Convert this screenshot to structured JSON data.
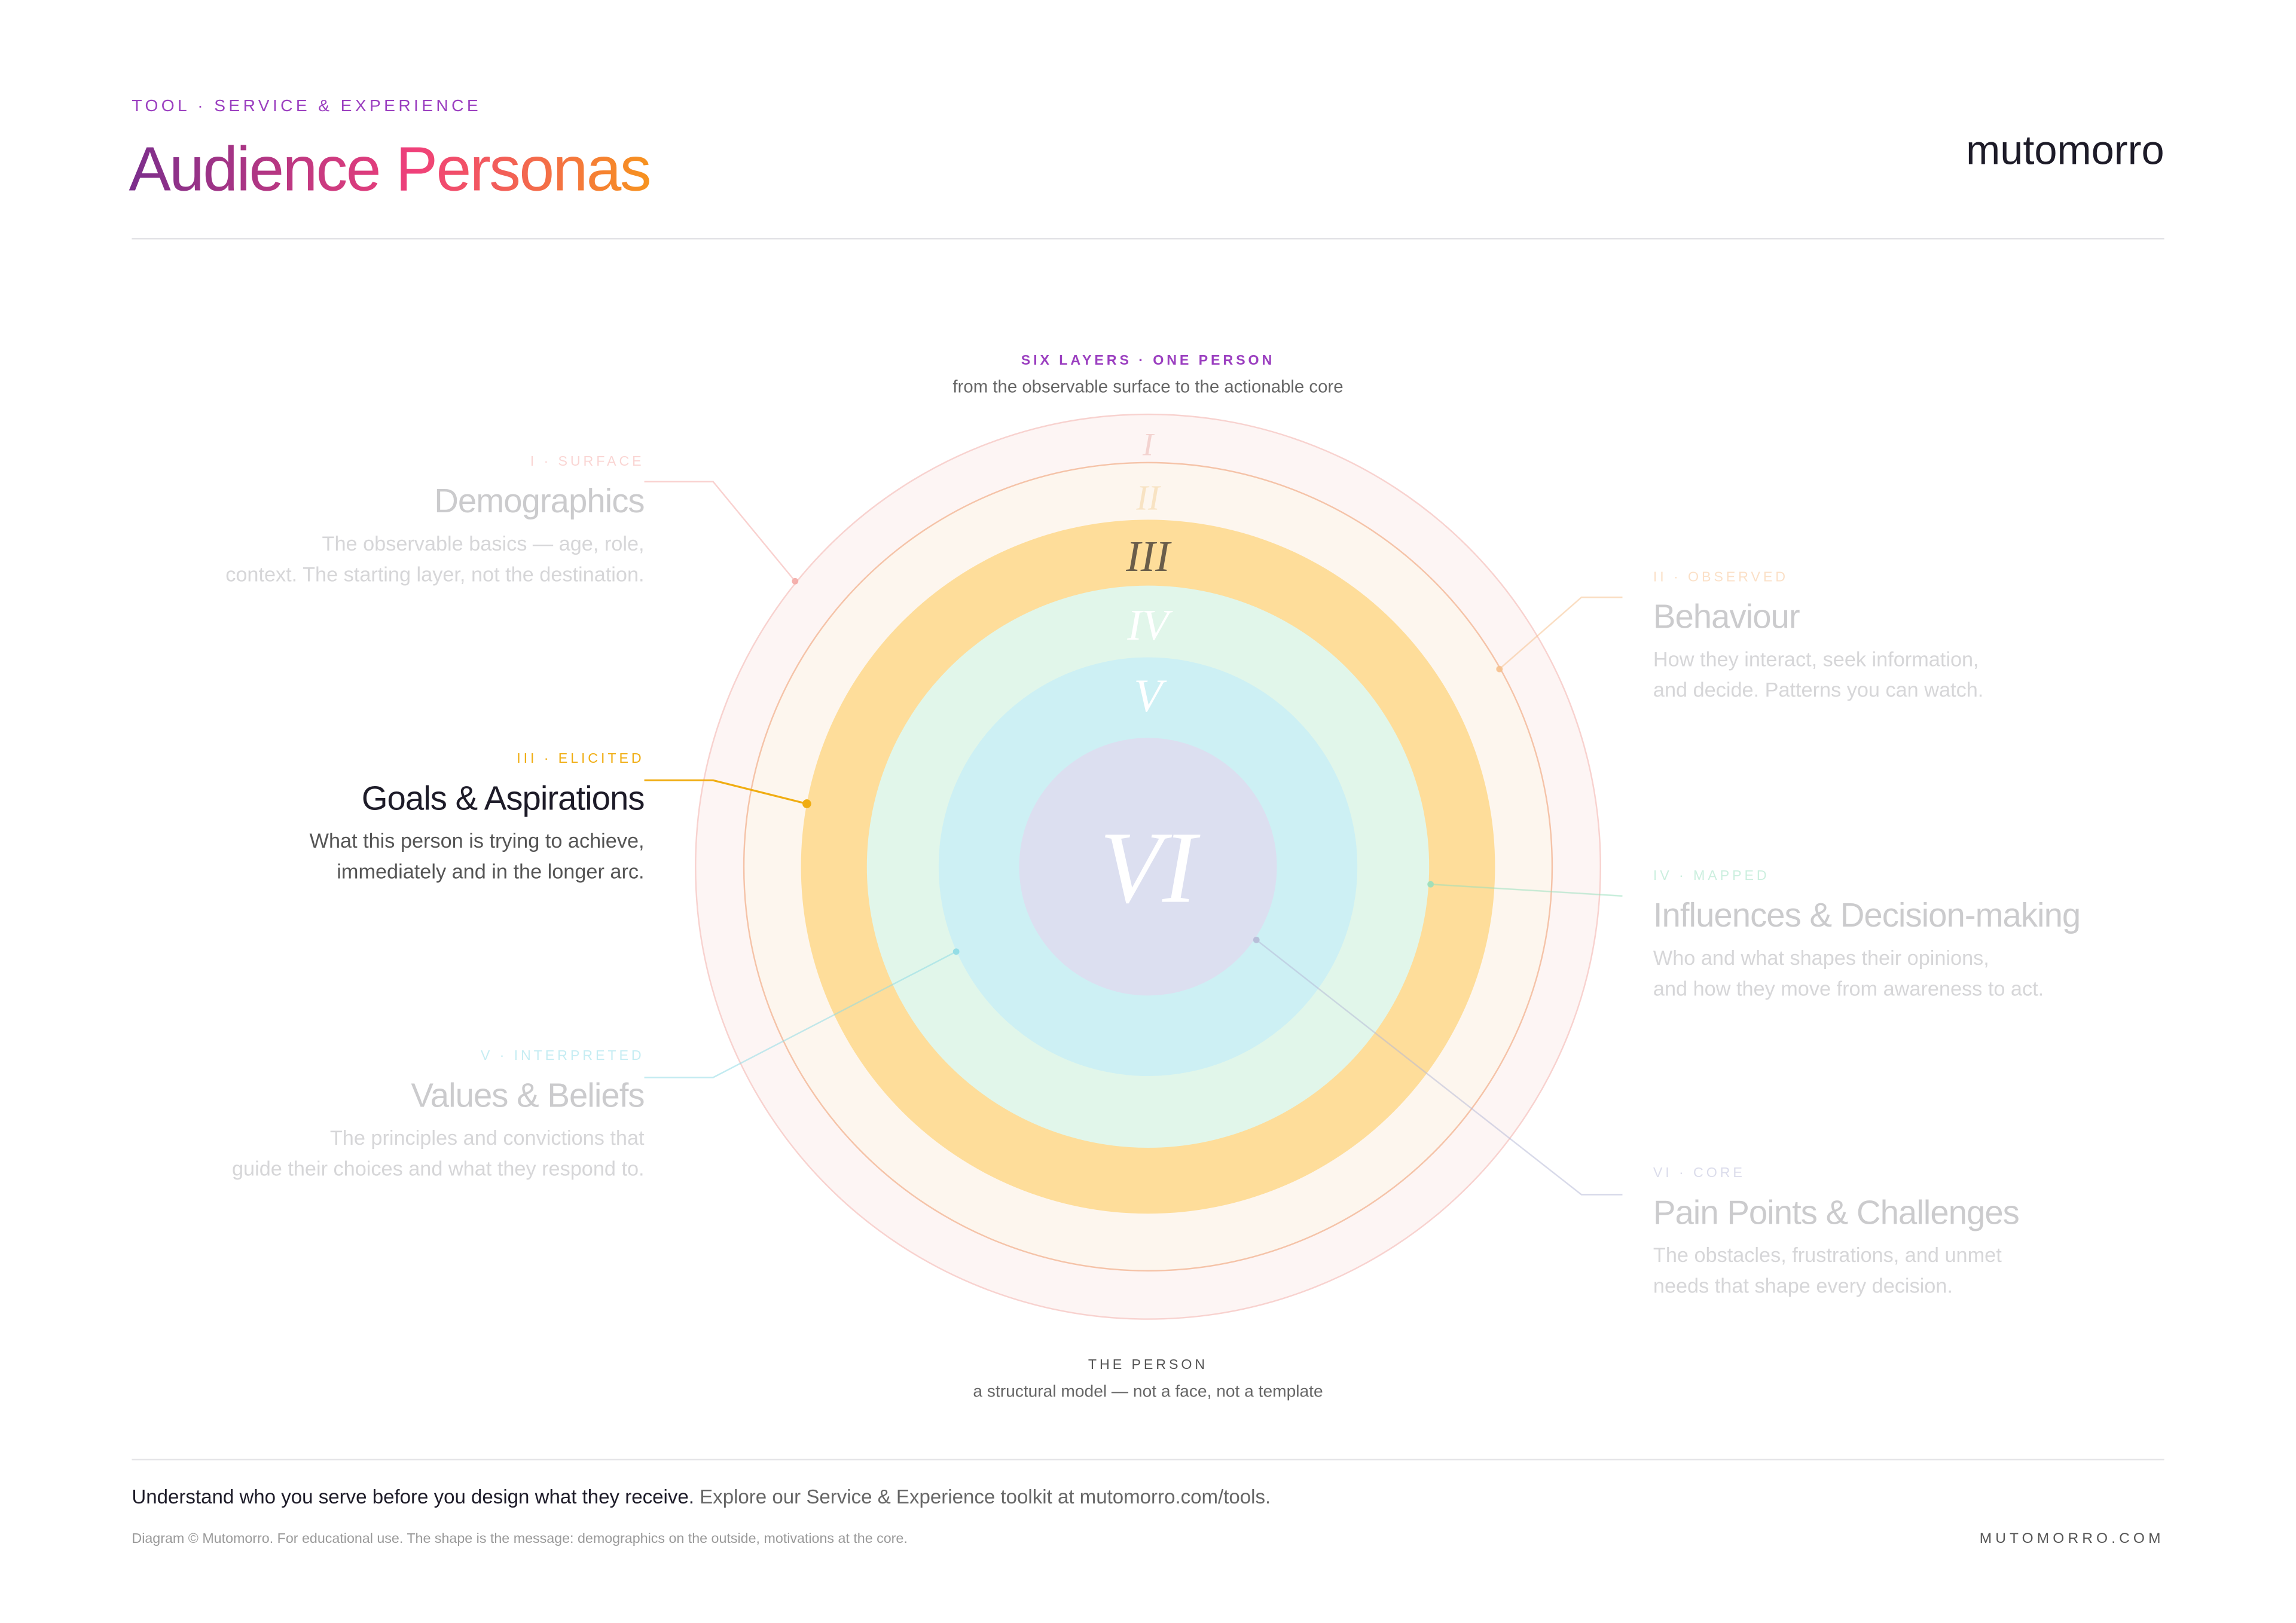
{
  "header": {
    "eyebrow": "TOOL · SERVICE & EXPERIENCE",
    "title": "Audience Personas",
    "brand": "mutomorro"
  },
  "diagram": {
    "kicker": "SIX LAYERS · ONE PERSON",
    "subtitle": "from the observable surface to the actionable core",
    "rings": [
      "I",
      "II",
      "III",
      "IV",
      "V",
      "VI"
    ],
    "caption_title": "THE PERSON",
    "caption_text": "a structural model — not a face, not a template"
  },
  "layers": [
    {
      "tag": "I · SURFACE",
      "title": "Demographics",
      "description": [
        "The observable basics — age, role,",
        "context. The starting layer, not the destination."
      ]
    },
    {
      "tag": "II · OBSERVED",
      "title": "Behaviour",
      "description": [
        "How they interact, seek information,",
        "and decide. Patterns you can watch."
      ]
    },
    {
      "tag": "III · ELICITED",
      "title": "Goals & Aspirations",
      "description": [
        "What this person is trying to achieve,",
        "immediately and in the longer arc."
      ]
    },
    {
      "tag": "IV · MAPPED",
      "title": "Influences & Decision-making",
      "description": [
        "Who and what shapes their opinions,",
        "and how they move from awareness to act."
      ]
    },
    {
      "tag": "V · INTERPRETED",
      "title": "Values & Beliefs",
      "description": [
        "The principles and convictions that",
        "guide their choices and what they respond to."
      ]
    },
    {
      "tag": "VI · CORE",
      "title": "Pain Points & Challenges",
      "description": [
        "The obstacles, frustrations, and unmet",
        "needs that shape every decision."
      ]
    }
  ],
  "footer": {
    "lead": "Understand who you serve before you design what they receive.",
    "rest": "Explore our Service & Experience toolkit at mutomorro.com/tools.",
    "fine_print": "Diagram © Mutomorro. For educational use. The shape is the message: demographics on the outside, motivations at the core.",
    "url": "MUTOMORRO.COM"
  }
}
